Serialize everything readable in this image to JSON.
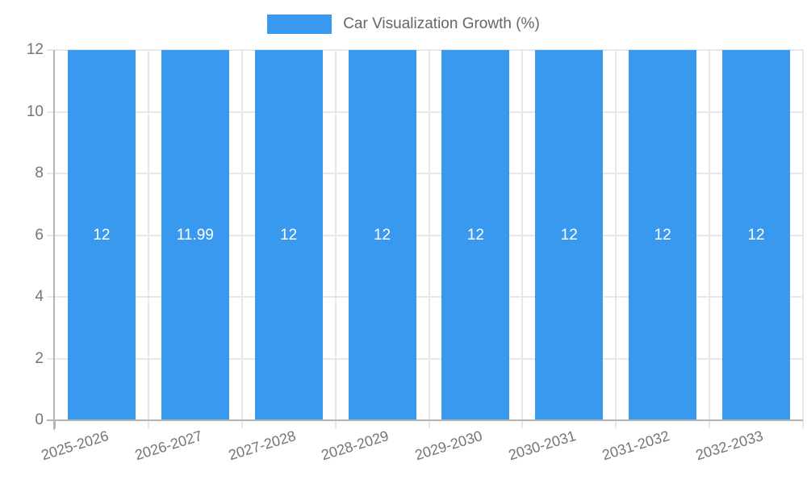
{
  "chart_data": {
    "type": "bar",
    "title": "Car Visualization Growth (%)",
    "legend": {
      "label": "Car Visualization Growth (%)",
      "position": "top"
    },
    "categories": [
      "2025-2026",
      "2026-2027",
      "2027-2028",
      "2028-2029",
      "2029-2030",
      "2030-2031",
      "2031-2032",
      "2032-2033"
    ],
    "values": [
      12,
      11.99,
      12,
      12,
      12,
      12,
      12,
      12
    ],
    "value_labels": [
      "12",
      "11.99",
      "12",
      "12",
      "12",
      "12",
      "12",
      "12"
    ],
    "xlabel": "",
    "ylabel": "",
    "ylim": [
      0,
      12
    ],
    "yticks": [
      0,
      2,
      4,
      6,
      8,
      10,
      12
    ],
    "grid": true,
    "colors": {
      "bar": "#3999EE",
      "grid": "#E7E7E7",
      "axis": "#B5B5B5",
      "tick_text": "#757575",
      "legend_text": "#666666",
      "value_text": "#FFFFFF"
    }
  }
}
